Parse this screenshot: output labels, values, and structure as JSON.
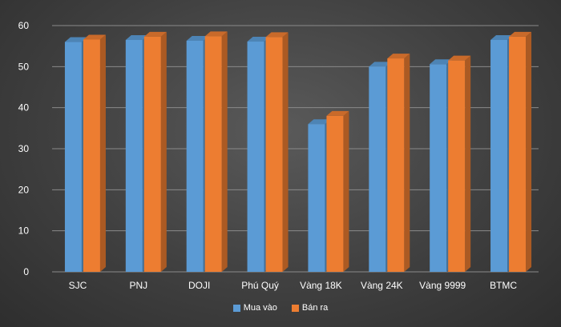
{
  "chart_data": {
    "type": "bar",
    "categories": [
      "SJC",
      "PNJ",
      "DOJI",
      "Phú Quý",
      "Vàng 18K",
      "Vàng 24K",
      "Vàng 9999",
      "BTMC"
    ],
    "series": [
      {
        "name": "Mua vào",
        "color": "#5b9bd5",
        "values": [
          56.0,
          56.5,
          56.3,
          56.1,
          36.0,
          50.0,
          50.6,
          56.5
        ]
      },
      {
        "name": "Bán ra",
        "color": "#ed7d31",
        "values": [
          56.6,
          57.3,
          57.4,
          57.2,
          38.0,
          52.0,
          51.5,
          57.3
        ]
      }
    ],
    "ylim": [
      0,
      60
    ],
    "yticks": [
      0,
      10,
      20,
      30,
      40,
      50,
      60
    ],
    "grid": true,
    "legend_position": "bottom",
    "style": "3d-column"
  }
}
